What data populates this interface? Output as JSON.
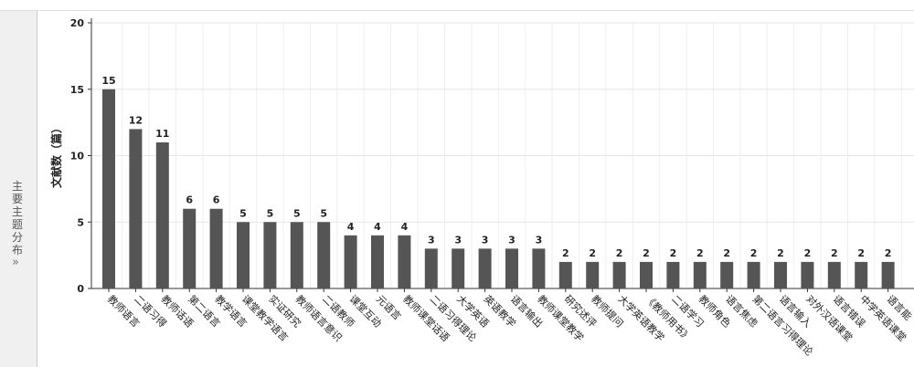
{
  "sidebar": {
    "label": "主要主题分布",
    "icon": "»"
  },
  "chart_data": {
    "type": "bar",
    "y_label": "文献数（篇）",
    "categories": [
      "教师语言",
      "二语习得",
      "教师话语",
      "第二语言",
      "教学语言",
      "课堂教学语言",
      "实证研究",
      "教师语言意识",
      "二语教师",
      "课堂互动",
      "元语言",
      "教师课堂话语",
      "二语习得理论",
      "大学英语",
      "英语教学",
      "语言输出",
      "教师课堂教学",
      "研究述评",
      "教师提问",
      "大学英语教学",
      "《教师用书》",
      "二语学习",
      "教师角色",
      "语言焦虑",
      "第二语言习得理论",
      "语言输入",
      "对外汉语课堂",
      "语言错误",
      "中学英语课堂",
      "语言能"
    ],
    "values": [
      15,
      12,
      11,
      6,
      6,
      5,
      5,
      5,
      5,
      4,
      4,
      4,
      3,
      3,
      3,
      3,
      3,
      2,
      2,
      2,
      2,
      2,
      2,
      2,
      2,
      2,
      2,
      2,
      2,
      2
    ],
    "color": "#555555",
    "ylim": [
      0,
      20
    ],
    "yticks": [
      0,
      5,
      10,
      15,
      20
    ],
    "grid": true
  }
}
